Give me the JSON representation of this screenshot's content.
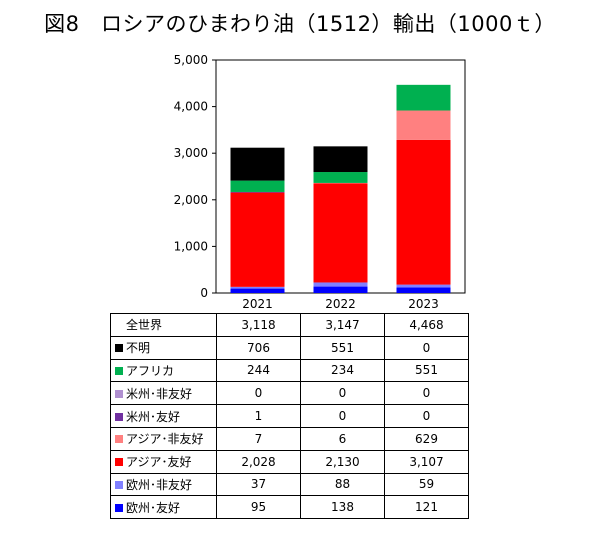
{
  "title": "図8　ロシアのひまわり油（1512）輸出（1000ｔ）",
  "chart_data": {
    "type": "bar",
    "stacked": true,
    "categories": [
      "2021",
      "2022",
      "2023"
    ],
    "ylim": [
      0,
      5000
    ],
    "yticks": [
      "0",
      "1,000",
      "2,000",
      "3,000",
      "4,000",
      "5,000"
    ],
    "ytick_values": [
      0,
      1000,
      2000,
      3000,
      4000,
      5000
    ],
    "grid": false,
    "legend": "data table below chart",
    "totals": {
      "name": "全世界",
      "values": [
        3118,
        3147,
        4468
      ],
      "labels": [
        "3,118",
        "3,147",
        "4,468"
      ]
    },
    "series": [
      {
        "name": "欧州･友好",
        "color": "#0000ff",
        "values": [
          95,
          138,
          121
        ],
        "labels": [
          "95",
          "138",
          "121"
        ]
      },
      {
        "name": "欧州･非友好",
        "color": "#8080ff",
        "values": [
          37,
          88,
          59
        ],
        "labels": [
          "37",
          "88",
          "59"
        ]
      },
      {
        "name": "アジア･友好",
        "color": "#ff0000",
        "values": [
          2028,
          2130,
          3107
        ],
        "labels": [
          "2,028",
          "2,130",
          "3,107"
        ]
      },
      {
        "name": "アジア･非友好",
        "color": "#ff8080",
        "values": [
          7,
          6,
          629
        ],
        "labels": [
          "7",
          "6",
          "629"
        ]
      },
      {
        "name": "米州･友好",
        "color": "#7030a0",
        "values": [
          1,
          0,
          0
        ],
        "labels": [
          "1",
          "0",
          "0"
        ]
      },
      {
        "name": "米州･非友好",
        "color": "#b090d0",
        "values": [
          0,
          0,
          0
        ],
        "labels": [
          "0",
          "0",
          "0"
        ]
      },
      {
        "name": "アフリカ",
        "color": "#00b050",
        "values": [
          244,
          234,
          551
        ],
        "labels": [
          "244",
          "234",
          "551"
        ]
      },
      {
        "name": "不明",
        "color": "#000000",
        "values": [
          706,
          551,
          0
        ],
        "labels": [
          "706",
          "551",
          "0"
        ]
      }
    ]
  }
}
